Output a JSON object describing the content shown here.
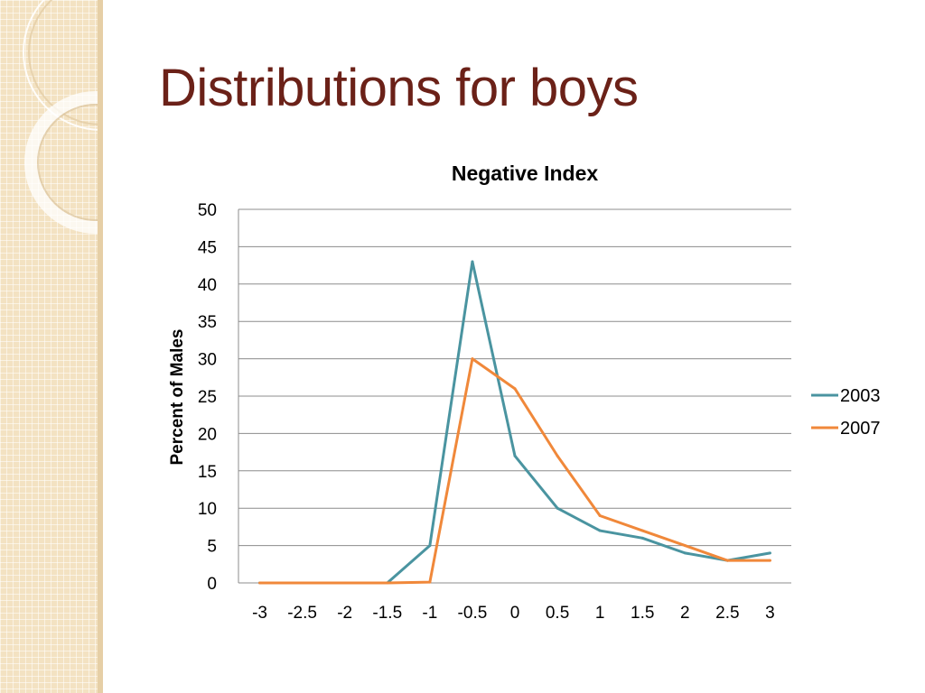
{
  "slide": {
    "title": "Distributions for boys"
  },
  "colors": {
    "title": "#6b2118",
    "band": "#f3e2c2",
    "series_2003": "#4a94a0",
    "series_2007": "#f0883a"
  },
  "chart_data": {
    "type": "line",
    "title": "Negative Index",
    "xlabel": "",
    "ylabel": "Percent of Males",
    "categories": [
      "-3",
      "-2.5",
      "-2",
      "-1.5",
      "-1",
      "-0.5",
      "0",
      "0.5",
      "1",
      "1.5",
      "2",
      "2.5",
      "3"
    ],
    "ylim": [
      0,
      50
    ],
    "yticks": [
      0,
      5,
      10,
      15,
      20,
      25,
      30,
      35,
      40,
      45,
      50
    ],
    "grid": true,
    "legend": "right",
    "series": [
      {
        "name": "2003",
        "color": "#4a94a0",
        "values": [
          0,
          0,
          0,
          0,
          5,
          43,
          17,
          10,
          7,
          6,
          4,
          3,
          4
        ]
      },
      {
        "name": "2007",
        "color": "#f0883a",
        "values": [
          0,
          0,
          0,
          0,
          0.1,
          30,
          26,
          17,
          9,
          7,
          5,
          3,
          3
        ]
      }
    ]
  }
}
